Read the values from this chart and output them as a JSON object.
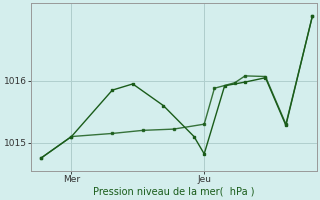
{
  "title": "",
  "xlabel": "Pression niveau de la mer(  hPa )",
  "ylabel": "",
  "bg_color": "#d4eeed",
  "line_color": "#1a5c1a",
  "grid_color": "#b0cfce",
  "yticks": [
    1015,
    1016
  ],
  "ylim": [
    1014.55,
    1017.25
  ],
  "xlim": [
    0,
    14
  ],
  "xtick_positions": [
    2.0,
    8.5
  ],
  "xtick_labels": [
    "Mer",
    "Jeu"
  ],
  "series1_x": [
    0.5,
    2.0,
    4.0,
    5.0,
    6.5,
    8.0,
    8.5,
    9.5,
    10.5,
    11.5,
    12.5,
    13.8
  ],
  "series1_y": [
    1014.75,
    1015.1,
    1015.85,
    1015.95,
    1015.6,
    1015.1,
    1014.82,
    1015.92,
    1015.98,
    1016.05,
    1015.28,
    1017.05
  ],
  "series2_x": [
    0.5,
    2.0,
    4.0,
    5.5,
    7.0,
    8.5,
    9.0,
    10.0,
    10.5,
    11.5,
    12.5,
    13.8
  ],
  "series2_y": [
    1014.75,
    1015.1,
    1015.15,
    1015.2,
    1015.22,
    1015.3,
    1015.88,
    1015.97,
    1016.08,
    1016.07,
    1015.3,
    1017.05
  ],
  "vline_x": [
    2.0,
    8.5
  ],
  "figsize": [
    3.2,
    2.0
  ],
  "dpi": 100
}
